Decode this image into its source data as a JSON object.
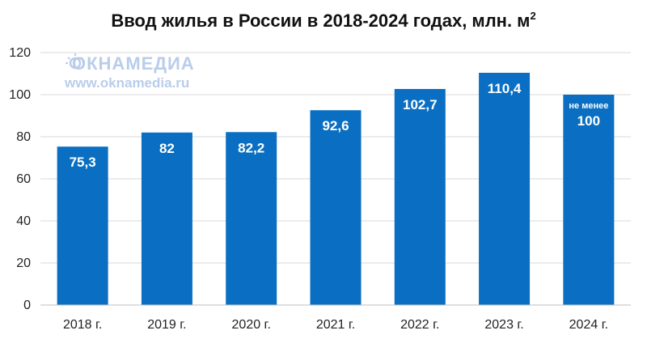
{
  "brand": {
    "name": "ОКНАМЕДИА",
    "url": "www.oknamedia.ru"
  },
  "colors": {
    "bar": "#0a6fc2",
    "grid": "#d9d9d9",
    "axis": "#bfbfbf",
    "watermark": "#b9cdea"
  },
  "chart_data": {
    "type": "bar",
    "title": "Ввод жилья в России в 2018-2024 годах, млн. м",
    "title_superscript": "2",
    "xlabel": "",
    "ylabel": "",
    "categories": [
      "2018 г.",
      "2019 г.",
      "2020 г.",
      "2021 г.",
      "2022 г.",
      "2023 г.",
      "2024 г."
    ],
    "values": [
      75.3,
      82,
      82.2,
      92.6,
      102.7,
      110.4,
      100
    ],
    "value_labels": [
      "75,3",
      "82",
      "82,2",
      "92,6",
      "102,7",
      "110,4",
      "100"
    ],
    "value_prefixes": [
      "",
      "",
      "",
      "",
      "",
      "",
      "не менее"
    ],
    "ylim": [
      0,
      120
    ],
    "yticks": [
      0,
      20,
      40,
      60,
      80,
      100,
      120
    ],
    "grid": true,
    "legend": "none"
  }
}
